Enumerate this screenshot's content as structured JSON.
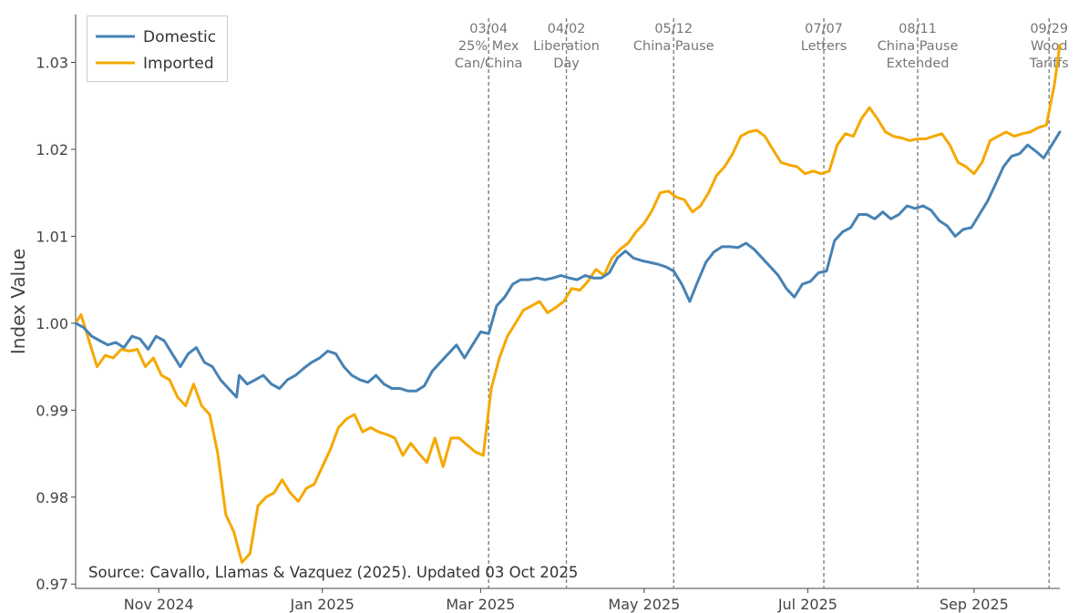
{
  "chart_data": {
    "type": "line",
    "title": "",
    "xlabel": "",
    "ylabel": "Index Value",
    "x_range": [
      "2024-10-01",
      "2025-10-03"
    ],
    "ylim": [
      0.9695,
      1.0355
    ],
    "y_ticks": [
      0.97,
      0.98,
      0.99,
      1.0,
      1.01,
      1.02,
      1.03
    ],
    "y_tick_labels": [
      "0.97",
      "0.98",
      "0.99",
      "1.00",
      "1.01",
      "1.02",
      "1.03"
    ],
    "x_ticks": [
      {
        "date": "2024-11-01",
        "label": "Nov 2024"
      },
      {
        "date": "2025-01-01",
        "label": "Jan 2025"
      },
      {
        "date": "2025-03-01",
        "label": "Mar 2025"
      },
      {
        "date": "2025-05-01",
        "label": "May 2025"
      },
      {
        "date": "2025-07-01",
        "label": "Jul 2025"
      },
      {
        "date": "2025-09-01",
        "label": "Sep 2025"
      }
    ],
    "legend": {
      "position": "top-left"
    },
    "source": "Source: Cavallo, Llamas & Vazquez (2025). Updated 03 Oct 2025",
    "events": [
      {
        "date": "2025-03-04",
        "lines": [
          "03/04",
          "25% Mex",
          "Can/China"
        ]
      },
      {
        "date": "2025-04-02",
        "lines": [
          "04/02",
          "Liberation",
          "Day"
        ]
      },
      {
        "date": "2025-05-12",
        "lines": [
          "05/12",
          "China Pause"
        ]
      },
      {
        "date": "2025-07-07",
        "lines": [
          "07/07",
          "Letters"
        ]
      },
      {
        "date": "2025-08-11",
        "lines": [
          "08/11",
          "China Pause",
          "Extended"
        ]
      },
      {
        "date": "2025-09-29",
        "lines": [
          "09/29",
          "Wood",
          "Tariffs"
        ]
      }
    ],
    "series": [
      {
        "name": "Domestic",
        "color": "#4682B4",
        "points": [
          [
            "2024-10-01",
            1.0
          ],
          [
            "2024-10-04",
            0.9995
          ],
          [
            "2024-10-07",
            0.9985
          ],
          [
            "2024-10-10",
            0.998
          ],
          [
            "2024-10-13",
            0.9975
          ],
          [
            "2024-10-16",
            0.9978
          ],
          [
            "2024-10-19",
            0.9972
          ],
          [
            "2024-10-22",
            0.9985
          ],
          [
            "2024-10-25",
            0.9982
          ],
          [
            "2024-10-28",
            0.997
          ],
          [
            "2024-10-31",
            0.9985
          ],
          [
            "2024-11-03",
            0.998
          ],
          [
            "2024-11-06",
            0.9965
          ],
          [
            "2024-11-09",
            0.995
          ],
          [
            "2024-11-12",
            0.9965
          ],
          [
            "2024-11-15",
            0.9972
          ],
          [
            "2024-11-18",
            0.9955
          ],
          [
            "2024-11-21",
            0.995
          ],
          [
            "2024-11-24",
            0.9935
          ],
          [
            "2024-11-27",
            0.9925
          ],
          [
            "2024-11-30",
            0.9915
          ],
          [
            "2024-12-01",
            0.994
          ],
          [
            "2024-12-04",
            0.993
          ],
          [
            "2024-12-07",
            0.9935
          ],
          [
            "2024-12-10",
            0.994
          ],
          [
            "2024-12-13",
            0.993
          ],
          [
            "2024-12-16",
            0.9925
          ],
          [
            "2024-12-19",
            0.9935
          ],
          [
            "2024-12-22",
            0.994
          ],
          [
            "2024-12-25",
            0.9948
          ],
          [
            "2024-12-28",
            0.9955
          ],
          [
            "2024-12-31",
            0.996
          ],
          [
            "2025-01-03",
            0.9968
          ],
          [
            "2025-01-06",
            0.9965
          ],
          [
            "2025-01-09",
            0.995
          ],
          [
            "2025-01-12",
            0.994
          ],
          [
            "2025-01-15",
            0.9935
          ],
          [
            "2025-01-18",
            0.9932
          ],
          [
            "2025-01-21",
            0.994
          ],
          [
            "2025-01-24",
            0.993
          ],
          [
            "2025-01-27",
            0.9925
          ],
          [
            "2025-01-30",
            0.9925
          ],
          [
            "2025-02-02",
            0.9922
          ],
          [
            "2025-02-05",
            0.9922
          ],
          [
            "2025-02-08",
            0.9928
          ],
          [
            "2025-02-11",
            0.9945
          ],
          [
            "2025-02-14",
            0.9955
          ],
          [
            "2025-02-17",
            0.9965
          ],
          [
            "2025-02-20",
            0.9975
          ],
          [
            "2025-02-23",
            0.996
          ],
          [
            "2025-02-26",
            0.9975
          ],
          [
            "2025-03-01",
            0.999
          ],
          [
            "2025-03-04",
            0.9988
          ],
          [
            "2025-03-07",
            1.002
          ],
          [
            "2025-03-10",
            1.003
          ],
          [
            "2025-03-13",
            1.0045
          ],
          [
            "2025-03-16",
            1.005
          ],
          [
            "2025-03-19",
            1.005
          ],
          [
            "2025-03-22",
            1.0052
          ],
          [
            "2025-03-25",
            1.005
          ],
          [
            "2025-03-28",
            1.0052
          ],
          [
            "2025-03-31",
            1.0055
          ],
          [
            "2025-04-03",
            1.0052
          ],
          [
            "2025-04-06",
            1.005
          ],
          [
            "2025-04-09",
            1.0055
          ],
          [
            "2025-04-12",
            1.0052
          ],
          [
            "2025-04-15",
            1.0052
          ],
          [
            "2025-04-18",
            1.0058
          ],
          [
            "2025-04-21",
            1.0075
          ],
          [
            "2025-04-24",
            1.0083
          ],
          [
            "2025-04-27",
            1.0075
          ],
          [
            "2025-04-30",
            1.0072
          ],
          [
            "2025-05-03",
            1.007
          ],
          [
            "2025-05-06",
            1.0068
          ],
          [
            "2025-05-09",
            1.0065
          ],
          [
            "2025-05-12",
            1.006
          ],
          [
            "2025-05-15",
            1.0045
          ],
          [
            "2025-05-18",
            1.0025
          ],
          [
            "2025-05-21",
            1.0048
          ],
          [
            "2025-05-24",
            1.007
          ],
          [
            "2025-05-27",
            1.0082
          ],
          [
            "2025-05-30",
            1.0088
          ],
          [
            "2025-06-02",
            1.0088
          ],
          [
            "2025-06-05",
            1.0087
          ],
          [
            "2025-06-08",
            1.0092
          ],
          [
            "2025-06-11",
            1.0085
          ],
          [
            "2025-06-14",
            1.0075
          ],
          [
            "2025-06-17",
            1.0065
          ],
          [
            "2025-06-20",
            1.0055
          ],
          [
            "2025-06-23",
            1.004
          ],
          [
            "2025-06-26",
            1.003
          ],
          [
            "2025-06-29",
            1.0045
          ],
          [
            "2025-07-02",
            1.0048
          ],
          [
            "2025-07-05",
            1.0058
          ],
          [
            "2025-07-08",
            1.006
          ],
          [
            "2025-07-11",
            1.0095
          ],
          [
            "2025-07-14",
            1.0105
          ],
          [
            "2025-07-17",
            1.011
          ],
          [
            "2025-07-20",
            1.0125
          ],
          [
            "2025-07-23",
            1.0125
          ],
          [
            "2025-07-26",
            1.012
          ],
          [
            "2025-07-29",
            1.0128
          ],
          [
            "2025-08-01",
            1.012
          ],
          [
            "2025-08-04",
            1.0125
          ],
          [
            "2025-08-07",
            1.0135
          ],
          [
            "2025-08-10",
            1.0132
          ],
          [
            "2025-08-13",
            1.0135
          ],
          [
            "2025-08-16",
            1.013
          ],
          [
            "2025-08-19",
            1.0118
          ],
          [
            "2025-08-22",
            1.0112
          ],
          [
            "2025-08-25",
            1.01
          ],
          [
            "2025-08-28",
            1.0108
          ],
          [
            "2025-08-31",
            1.011
          ],
          [
            "2025-09-03",
            1.0125
          ],
          [
            "2025-09-06",
            1.014
          ],
          [
            "2025-09-09",
            1.016
          ],
          [
            "2025-09-12",
            1.018
          ],
          [
            "2025-09-15",
            1.0192
          ],
          [
            "2025-09-18",
            1.0195
          ],
          [
            "2025-09-21",
            1.0205
          ],
          [
            "2025-09-24",
            1.0198
          ],
          [
            "2025-09-27",
            1.019
          ],
          [
            "2025-09-30",
            1.0205
          ],
          [
            "2025-10-03",
            1.022
          ]
        ]
      },
      {
        "name": "Imported",
        "color": "#F5A800",
        "points": [
          [
            "2024-10-01",
            1.0
          ],
          [
            "2024-10-03",
            1.001
          ],
          [
            "2024-10-06",
            0.998
          ],
          [
            "2024-10-09",
            0.995
          ],
          [
            "2024-10-12",
            0.9963
          ],
          [
            "2024-10-15",
            0.996
          ],
          [
            "2024-10-18",
            0.997
          ],
          [
            "2024-10-21",
            0.9968
          ],
          [
            "2024-10-24",
            0.997
          ],
          [
            "2024-10-27",
            0.995
          ],
          [
            "2024-10-30",
            0.996
          ],
          [
            "2024-11-02",
            0.994
          ],
          [
            "2024-11-05",
            0.9935
          ],
          [
            "2024-11-08",
            0.9915
          ],
          [
            "2024-11-11",
            0.9905
          ],
          [
            "2024-11-14",
            0.993
          ],
          [
            "2024-11-17",
            0.9905
          ],
          [
            "2024-11-20",
            0.9895
          ],
          [
            "2024-11-23",
            0.985
          ],
          [
            "2024-11-26",
            0.978
          ],
          [
            "2024-11-29",
            0.976
          ],
          [
            "2024-12-02",
            0.9725
          ],
          [
            "2024-12-05",
            0.9735
          ],
          [
            "2024-12-08",
            0.979
          ],
          [
            "2024-12-11",
            0.98
          ],
          [
            "2024-12-14",
            0.9805
          ],
          [
            "2024-12-17",
            0.982
          ],
          [
            "2024-12-20",
            0.9805
          ],
          [
            "2024-12-23",
            0.9795
          ],
          [
            "2024-12-26",
            0.981
          ],
          [
            "2024-12-29",
            0.9815
          ],
          [
            "2025-01-01",
            0.9835
          ],
          [
            "2025-01-04",
            0.9855
          ],
          [
            "2025-01-07",
            0.988
          ],
          [
            "2025-01-10",
            0.989
          ],
          [
            "2025-01-13",
            0.9895
          ],
          [
            "2025-01-16",
            0.9875
          ],
          [
            "2025-01-19",
            0.988
          ],
          [
            "2025-01-22",
            0.9875
          ],
          [
            "2025-01-25",
            0.9872
          ],
          [
            "2025-01-28",
            0.9868
          ],
          [
            "2025-01-31",
            0.9848
          ],
          [
            "2025-02-03",
            0.9862
          ],
          [
            "2025-02-06",
            0.985
          ],
          [
            "2025-02-09",
            0.984
          ],
          [
            "2025-02-12",
            0.9868
          ],
          [
            "2025-02-15",
            0.9835
          ],
          [
            "2025-02-18",
            0.9868
          ],
          [
            "2025-02-21",
            0.9868
          ],
          [
            "2025-02-24",
            0.986
          ],
          [
            "2025-02-27",
            0.9852
          ],
          [
            "2025-03-02",
            0.9848
          ],
          [
            "2025-03-05",
            0.9925
          ],
          [
            "2025-03-08",
            0.996
          ],
          [
            "2025-03-11",
            0.9985
          ],
          [
            "2025-03-14",
            1.0
          ],
          [
            "2025-03-17",
            1.0015
          ],
          [
            "2025-03-20",
            1.002
          ],
          [
            "2025-03-23",
            1.0025
          ],
          [
            "2025-03-26",
            1.0012
          ],
          [
            "2025-03-29",
            1.0018
          ],
          [
            "2025-04-01",
            1.0025
          ],
          [
            "2025-04-04",
            1.004
          ],
          [
            "2025-04-07",
            1.0038
          ],
          [
            "2025-04-10",
            1.0048
          ],
          [
            "2025-04-13",
            1.0062
          ],
          [
            "2025-04-16",
            1.0055
          ],
          [
            "2025-04-19",
            1.0075
          ],
          [
            "2025-04-22",
            1.0085
          ],
          [
            "2025-04-25",
            1.0092
          ],
          [
            "2025-04-28",
            1.0105
          ],
          [
            "2025-05-01",
            1.0115
          ],
          [
            "2025-05-04",
            1.013
          ],
          [
            "2025-05-07",
            1.015
          ],
          [
            "2025-05-10",
            1.0152
          ],
          [
            "2025-05-13",
            1.0145
          ],
          [
            "2025-05-16",
            1.0142
          ],
          [
            "2025-05-19",
            1.0128
          ],
          [
            "2025-05-22",
            1.0135
          ],
          [
            "2025-05-25",
            1.015
          ],
          [
            "2025-05-28",
            1.017
          ],
          [
            "2025-05-31",
            1.018
          ],
          [
            "2025-06-03",
            1.0195
          ],
          [
            "2025-06-06",
            1.0215
          ],
          [
            "2025-06-09",
            1.022
          ],
          [
            "2025-06-12",
            1.0222
          ],
          [
            "2025-06-15",
            1.0215
          ],
          [
            "2025-06-18",
            1.02
          ],
          [
            "2025-06-21",
            1.0185
          ],
          [
            "2025-06-24",
            1.0182
          ],
          [
            "2025-06-27",
            1.018
          ],
          [
            "2025-06-30",
            1.0172
          ],
          [
            "2025-07-03",
            1.0175
          ],
          [
            "2025-07-06",
            1.0172
          ],
          [
            "2025-07-09",
            1.0175
          ],
          [
            "2025-07-12",
            1.0205
          ],
          [
            "2025-07-15",
            1.0218
          ],
          [
            "2025-07-18",
            1.0215
          ],
          [
            "2025-07-21",
            1.0235
          ],
          [
            "2025-07-24",
            1.0248
          ],
          [
            "2025-07-27",
            1.0235
          ],
          [
            "2025-07-30",
            1.022
          ],
          [
            "2025-08-02",
            1.0215
          ],
          [
            "2025-08-05",
            1.0213
          ],
          [
            "2025-08-08",
            1.021
          ],
          [
            "2025-08-11",
            1.0212
          ],
          [
            "2025-08-14",
            1.0212
          ],
          [
            "2025-08-17",
            1.0215
          ],
          [
            "2025-08-20",
            1.0218
          ],
          [
            "2025-08-23",
            1.0205
          ],
          [
            "2025-08-26",
            1.0185
          ],
          [
            "2025-08-29",
            1.018
          ],
          [
            "2025-09-01",
            1.0172
          ],
          [
            "2025-09-04",
            1.0185
          ],
          [
            "2025-09-07",
            1.021
          ],
          [
            "2025-09-10",
            1.0215
          ],
          [
            "2025-09-13",
            1.022
          ],
          [
            "2025-09-16",
            1.0215
          ],
          [
            "2025-09-19",
            1.0218
          ],
          [
            "2025-09-22",
            1.022
          ],
          [
            "2025-09-25",
            1.0225
          ],
          [
            "2025-09-28",
            1.0228
          ],
          [
            "2025-10-01",
            1.0275
          ],
          [
            "2025-10-03",
            1.032
          ]
        ]
      }
    ]
  }
}
